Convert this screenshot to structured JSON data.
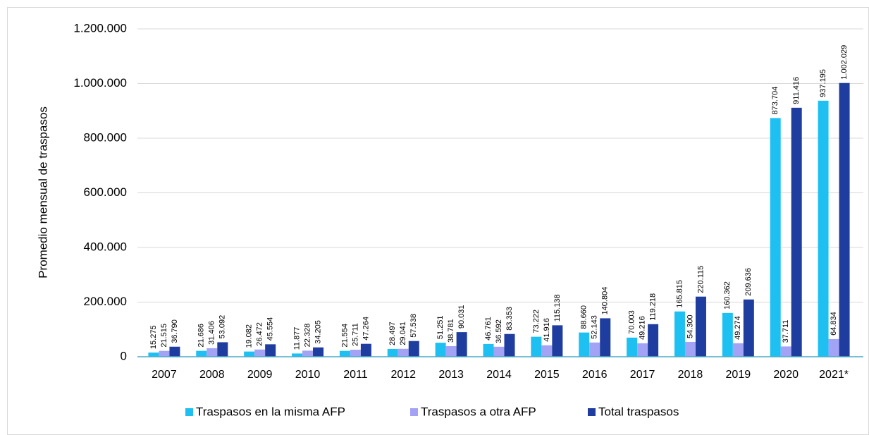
{
  "chart_data": {
    "type": "bar",
    "y_label": "Promedio mensual de traspasos",
    "categories": [
      "2007",
      "2008",
      "2009",
      "2010",
      "2011",
      "2012",
      "2013",
      "2014",
      "2015",
      "2016",
      "2017",
      "2018",
      "2019",
      "2020",
      "2021*"
    ],
    "series": [
      {
        "name": "Traspasos en la misma AFP",
        "color": "#1ec0f2",
        "values": [
          15275,
          21686,
          19082,
          11877,
          21554,
          28497,
          51251,
          46761,
          73222,
          88660,
          70003,
          165815,
          160362,
          873704,
          937195
        ],
        "value_labels": [
          "15.275",
          "21.686",
          "19.082",
          "11.877",
          "21.554",
          "28.497",
          "51.251",
          "46.761",
          "73.222",
          "88.660",
          "70.003",
          "165.815",
          "160.362",
          "873.704",
          "937.195"
        ]
      },
      {
        "name": "Traspasos a otra AFP",
        "color": "#a3a3f5",
        "values": [
          21515,
          31406,
          26472,
          22328,
          25711,
          29041,
          38781,
          36592,
          41916,
          52143,
          49216,
          54300,
          49274,
          37711,
          64834
        ],
        "value_labels": [
          "21.515",
          "31.406",
          "26.472",
          "22.328",
          "25.711",
          "29.041",
          "38.781",
          "36.592",
          "41.916",
          "52.143",
          "49.216",
          "54.300",
          "49.274",
          "37.711",
          "64.834"
        ]
      },
      {
        "name": "Total traspasos",
        "color": "#1f3d9e",
        "values": [
          36790,
          53092,
          45554,
          34205,
          47264,
          57538,
          90031,
          83353,
          115138,
          140804,
          119218,
          220115,
          209636,
          911416,
          1002029
        ],
        "value_labels": [
          "36.790",
          "53.092",
          "45.554",
          "34.205",
          "47.264",
          "57.538",
          "90.031",
          "83.353",
          "115.138",
          "140.804",
          "119.218",
          "220.115",
          "209.636",
          "911.416",
          "1.002.029"
        ]
      }
    ],
    "ylim": [
      0,
      1200000
    ],
    "yticks": [
      0,
      {
        "value": 200000,
        "label": "200.000"
      },
      {
        "value": 400000,
        "label": "400.000"
      },
      {
        "value": 600000,
        "label": "600.000"
      },
      {
        "value": 800000,
        "label": "800.000"
      },
      {
        "value": 1000000,
        "label": "1.000.000"
      },
      {
        "value": 1200000,
        "label": "1.200.000"
      }
    ],
    "grid": true,
    "legend": "bottom"
  }
}
